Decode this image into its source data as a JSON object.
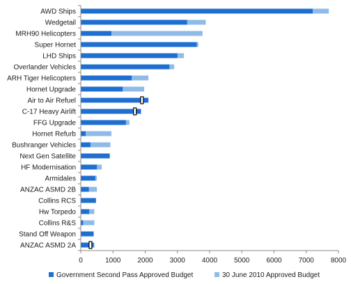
{
  "chart_data": {
    "type": "bar",
    "orientation": "horizontal",
    "stacked": "overlay",
    "categories": [
      "AWD Ships",
      "Wedgetail",
      "MRH90 Helicopters",
      "Super Hornet",
      "LHD Ships",
      "Overlander Vehicles",
      "ARH Tiger Helicopters",
      "Hornet Upgrade",
      "Air to Air Refuel",
      "C-17 Heavy Airlift",
      "FFG Upgrade",
      "Hornet Refurb",
      "Bushranger Vehicles",
      "Next Gen Satellite",
      "HF Modernisation",
      "Armidales",
      "ANZAC ASMD 2B",
      "Collins RCS",
      "Hw Torpedo",
      "Collins R&S",
      "Stand Off  Weapon",
      "ANZAC ASMD 2A"
    ],
    "series": [
      {
        "name": "Government Second Pass Approved Budget",
        "color": "#1f6fd1",
        "values": [
          7200,
          3300,
          950,
          3600,
          3000,
          2750,
          1580,
          1300,
          2100,
          1870,
          1400,
          150,
          300,
          900,
          500,
          450,
          250,
          470,
          260,
          70,
          400,
          400
        ]
      },
      {
        "name": "30 June 2010 Approved Budget",
        "color": "#8fbbe8",
        "values": [
          7700,
          3880,
          3780,
          3650,
          3200,
          2900,
          2100,
          1970,
          2030,
          1870,
          1510,
          950,
          920,
          860,
          650,
          500,
          500,
          470,
          420,
          420,
          390,
          420
        ]
      }
    ],
    "markers": [
      {
        "category": "Air to Air Refuel",
        "value": 1900
      },
      {
        "category": "C-17 Heavy Airlift",
        "value": 1680
      },
      {
        "category": "ANZAC ASMD 2A",
        "value": 300
      }
    ],
    "xlim": [
      0,
      8000
    ],
    "xticks": [
      "0",
      "1000",
      "2000",
      "3000",
      "4000",
      "5000",
      "6000",
      "7000",
      "8000"
    ],
    "xlabel": "",
    "ylabel": "",
    "title": "",
    "grid": false,
    "legend_position": "bottom"
  }
}
